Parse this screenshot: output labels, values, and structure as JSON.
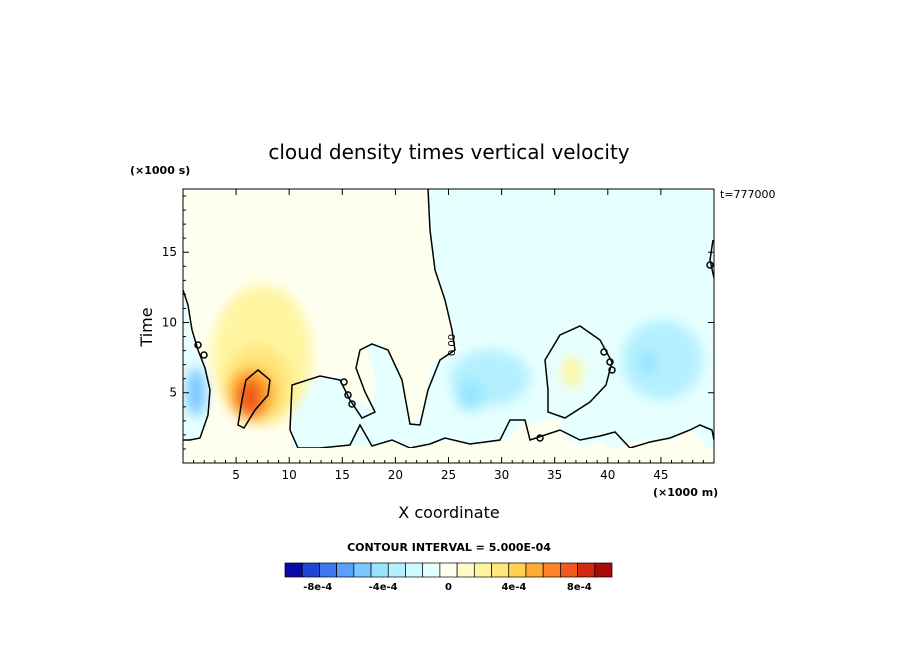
{
  "chart_data": {
    "type": "heatmap",
    "title": "cloud density times vertical velocity",
    "xlabel": "X coordinate",
    "ylabel": "Time",
    "x_unit": "(×1000 m)",
    "y_unit": "(×1000 s)",
    "time_stamp": "t=777000",
    "xlim": [
      0,
      50
    ],
    "ylim": [
      0,
      19.5
    ],
    "x_ticks": [
      5,
      10,
      15,
      20,
      25,
      30,
      35,
      40,
      45
    ],
    "y_ticks": [
      5,
      10,
      15
    ],
    "contour_label": "0.00",
    "contour_interval_text": "CONTOUR INTERVAL = 5.000E-04",
    "colorbar": {
      "min": -0.001,
      "max": 0.001,
      "interval": 0.0005,
      "labels": [
        "-8e-4",
        "-4e-4",
        "0",
        "4e-4",
        "8e-4"
      ],
      "label_values": [
        -0.0008,
        -0.0004,
        0,
        0.0004,
        0.0008
      ],
      "colors": [
        "#0a0aa8",
        "#1e46d2",
        "#3c78f0",
        "#5aa0ff",
        "#7ac8ff",
        "#96e6ff",
        "#b4f0ff",
        "#cdfaff",
        "#e6ffff",
        "#fffff0",
        "#fffac8",
        "#fff5a0",
        "#ffe678",
        "#ffd250",
        "#ffaa32",
        "#ff8228",
        "#f05a1e",
        "#d22814",
        "#aa0a0a"
      ]
    },
    "features": [
      {
        "name": "updraft core",
        "x": 6.1,
        "y": 5.0,
        "value": 0.00095
      },
      {
        "name": "updraft halo",
        "x": 7.2,
        "y": 8.0,
        "value": 0.00028
      },
      {
        "name": "downdraft left",
        "x": 1.2,
        "y": 5.0,
        "value": -0.0004
      },
      {
        "name": "downdraft band",
        "x": 29.5,
        "y": 5.5,
        "value": -0.0003
      },
      {
        "name": "downdraft right",
        "x": 43.5,
        "y": 7.5,
        "value": -0.00028
      },
      {
        "name": "weak updraft",
        "x": 36.5,
        "y": 6.8,
        "value": 0.00015
      }
    ]
  }
}
